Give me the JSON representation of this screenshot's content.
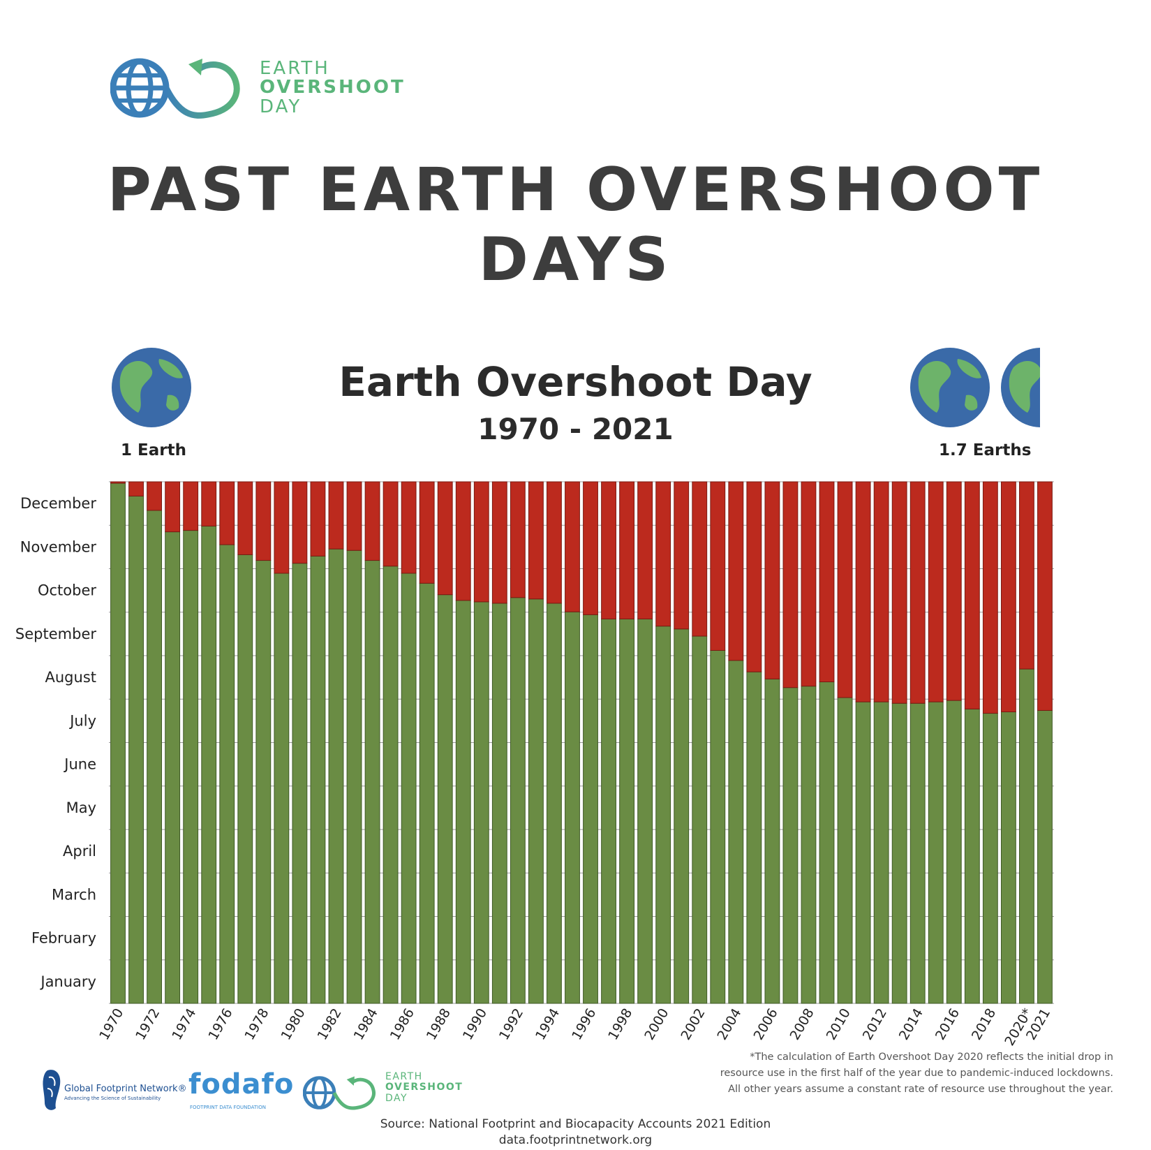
{
  "header": {
    "logo": {
      "line1": "EARTH",
      "line2": "OVERSHOOT",
      "line3": "DAY"
    },
    "title": "PAST EARTH OVERSHOOT DAYS"
  },
  "chart_header": {
    "title": "Earth Overshoot Day",
    "subtitle": "1970 - 2021",
    "left_label": "1 Earth",
    "right_label": "1.7 Earths"
  },
  "colors": {
    "green": "#6a8c44",
    "red": "#bc2a1e",
    "globe_ocean": "#3a6aa8",
    "globe_land": "#6db36a",
    "text": "#2b2b2b"
  },
  "chart_data": {
    "type": "bar",
    "stacked": true,
    "orientation": "vertical",
    "x_label_note": "2020*",
    "categories": [
      "1970",
      "1971",
      "1972",
      "1973",
      "1974",
      "1975",
      "1976",
      "1977",
      "1978",
      "1979",
      "1980",
      "1981",
      "1982",
      "1983",
      "1984",
      "1985",
      "1986",
      "1987",
      "1988",
      "1989",
      "1990",
      "1991",
      "1992",
      "1993",
      "1994",
      "1995",
      "1996",
      "1997",
      "1998",
      "1999",
      "2000",
      "2001",
      "2002",
      "2003",
      "2004",
      "2005",
      "2006",
      "2007",
      "2008",
      "2009",
      "2010",
      "2011",
      "2012",
      "2013",
      "2014",
      "2015",
      "2016",
      "2017",
      "2018",
      "2019",
      "2020*",
      "2021"
    ],
    "x_tick_labels": [
      "1970",
      "1972",
      "1974",
      "1976",
      "1978",
      "1980",
      "1982",
      "1984",
      "1986",
      "1988",
      "1990",
      "1992",
      "1994",
      "1996",
      "1998",
      "2000",
      "2002",
      "2004",
      "2006",
      "2008",
      "2010",
      "2012",
      "2014",
      "2016",
      "2018",
      "2020*",
      "2021"
    ],
    "y_tick_labels": [
      "January",
      "February",
      "March",
      "April",
      "May",
      "June",
      "July",
      "August",
      "September",
      "October",
      "November",
      "December"
    ],
    "y_unit": "day of year",
    "ylim": [
      0,
      365
    ],
    "series": [
      {
        "color": "#6a8c44",
        "values": [
          364,
          355,
          345,
          330,
          331,
          334,
          321,
          314,
          310,
          301,
          308,
          313,
          318,
          317,
          310,
          306,
          301,
          294,
          286,
          282,
          281,
          280,
          284,
          283,
          280,
          274,
          272,
          269,
          269,
          269,
          264,
          262,
          257,
          247,
          240,
          232,
          227,
          221,
          222,
          225,
          214,
          211,
          211,
          210,
          210,
          211,
          212,
          206,
          203,
          204,
          234,
          205
        ]
      },
      {
        "color": "#bc2a1e",
        "values": [
          1,
          10,
          20,
          35,
          34,
          31,
          44,
          51,
          55,
          64,
          57,
          52,
          47,
          48,
          55,
          59,
          64,
          71,
          79,
          83,
          84,
          85,
          81,
          82,
          85,
          91,
          93,
          96,
          96,
          96,
          101,
          103,
          108,
          118,
          125,
          133,
          138,
          144,
          143,
          140,
          151,
          154,
          154,
          155,
          155,
          154,
          153,
          159,
          162,
          161,
          131,
          160
        ]
      }
    ]
  },
  "footnote": {
    "line1": "*The calculation of Earth Overshoot Day 2020 reflects the initial drop in",
    "line2": "resource use in the first half of the year due to pandemic-induced lockdowns.",
    "line3": "All other years assume a constant rate of resource use throughout the year."
  },
  "partners": {
    "gfn_name": "Global Footprint Network®",
    "gfn_tagline": "Advancing the Science of Sustainability",
    "fodafo_name": "fodafo",
    "fodafo_tagline": "FOOTPRINT DATA FOUNDATION",
    "eod_line1": "EARTH",
    "eod_line2": "OVERSHOOT",
    "eod_line3": "DAY"
  },
  "source": {
    "line1": "Source: National Footprint and Biocapacity Accounts 2021 Edition",
    "line2": "data.footprintnetwork.org"
  }
}
